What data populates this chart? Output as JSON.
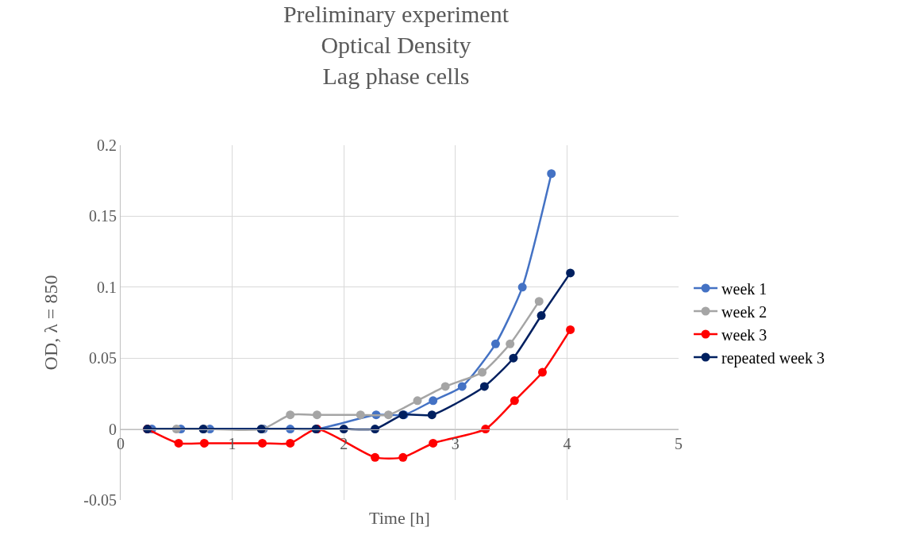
{
  "chart_data": {
    "type": "line",
    "title": "Preliminary experiment\nOptical Density\nLag phase cells",
    "xlabel": "Time [h]",
    "ylabel": "OD, λ = 850",
    "xlim": [
      0,
      5
    ],
    "xticks": [
      0,
      1,
      2,
      3,
      4,
      5
    ],
    "ylim": [
      -0.05,
      0.2
    ],
    "yticks": [
      -0.05,
      0,
      0.05,
      0.1,
      0.15,
      0.2
    ],
    "grid": true,
    "legend": "right",
    "marker": "circle",
    "line_style": "solid",
    "series": [
      {
        "name": "week 1",
        "color": "#4472c4",
        "x": [
          0.28,
          0.54,
          0.8,
          1.28,
          1.52,
          1.76,
          2.29,
          2.54,
          2.8,
          3.06,
          3.36,
          3.6,
          3.86
        ],
        "values": [
          0,
          0,
          0,
          0,
          0,
          0,
          0.01,
          0.01,
          0.02,
          0.03,
          0.06,
          0.1,
          0.18
        ]
      },
      {
        "name": "week 2",
        "color": "#a5a5a5",
        "x": [
          0.24,
          0.5,
          0.75,
          1.27,
          1.52,
          1.76,
          2.15,
          2.4,
          2.66,
          2.91,
          3.24,
          3.49,
          3.75
        ],
        "values": [
          0,
          0,
          0,
          0,
          0.01,
          0.01,
          0.01,
          0.01,
          0.02,
          0.03,
          0.04,
          0.06,
          0.09
        ]
      },
      {
        "name": "week 3",
        "color": "#ff0000",
        "x": [
          0.24,
          0.52,
          0.75,
          1.27,
          1.52,
          1.76,
          2.28,
          2.53,
          2.8,
          3.27,
          3.53,
          3.78,
          4.03
        ],
        "values": [
          0,
          -0.01,
          -0.01,
          -0.01,
          -0.01,
          0,
          -0.02,
          -0.02,
          -0.01,
          0,
          0.02,
          0.04,
          0.07
        ]
      },
      {
        "name": "repeated week 3",
        "color": "#002060",
        "x": [
          0.24,
          0.74,
          1.26,
          1.75,
          2.0,
          2.28,
          2.53,
          2.79,
          3.26,
          3.52,
          3.77,
          4.03
        ],
        "values": [
          0,
          0,
          0,
          0,
          0,
          0,
          0.01,
          0.01,
          0.03,
          0.05,
          0.08,
          0.11
        ]
      }
    ]
  }
}
